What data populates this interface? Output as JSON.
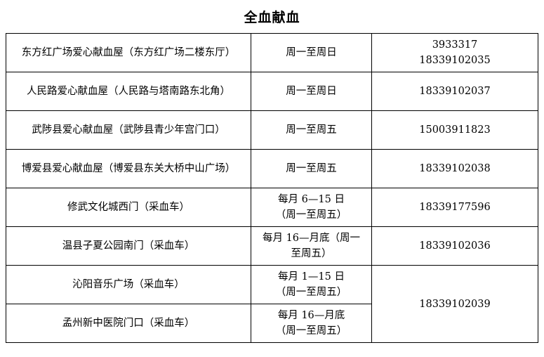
{
  "title": "全血献血",
  "table": {
    "rows": [
      {
        "place": "东方红广场爱心献血屋（东方红广场二楼东厅）",
        "hours": [
          "周一至周日"
        ],
        "phone": [
          "3933317",
          "18339102035"
        ]
      },
      {
        "place": "人民路爱心献血屋（人民路与塔南路东北角）",
        "hours": [
          "周一至周日"
        ],
        "phone": [
          "18339102037"
        ]
      },
      {
        "place": "武陟县爱心献血屋（武陟县青少年宫门口）",
        "hours": [
          "周一至周五"
        ],
        "phone": [
          "15003911823"
        ]
      },
      {
        "place": "博爱县爱心献血屋（博爱县东关大桥中山广场）",
        "hours": [
          "周一至周五"
        ],
        "phone": [
          "18339102038"
        ]
      },
      {
        "place": "修武文化城西门（采血车）",
        "hours": [
          "每月 6—15 日",
          "（周一至周五）"
        ],
        "phone": [
          "18339177596"
        ]
      },
      {
        "place": "温县子夏公园南门（采血车）",
        "hours": [
          "每月 16—月底（周一",
          "至周五）"
        ],
        "phone": [
          "18339102036"
        ]
      },
      {
        "place": "沁阳音乐广场（采血车）",
        "hours": [
          "每月 1—15 日",
          "（周一至周五）"
        ],
        "phone": [
          "18339102039"
        ]
      },
      {
        "place": "孟州新中医院门口（采血车）",
        "hours": [
          "每月 16—月底",
          "（周一至周五）"
        ]
      }
    ]
  }
}
